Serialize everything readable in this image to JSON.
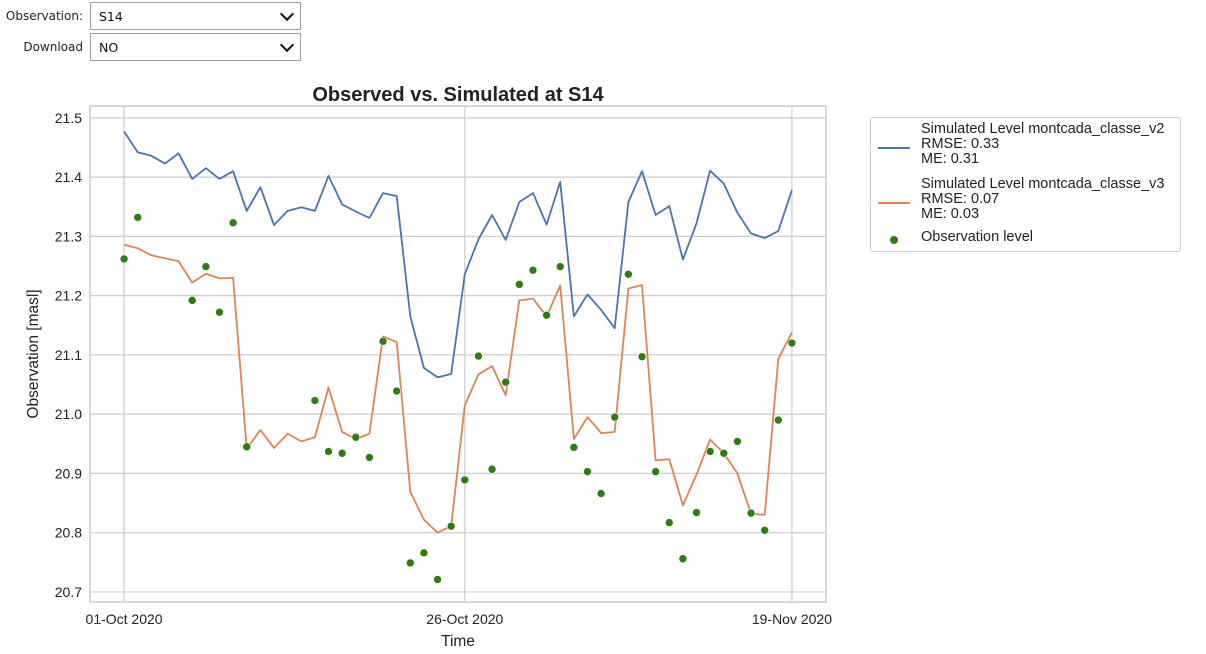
{
  "controls": {
    "observation": {
      "label": "Observation:",
      "value": "S14"
    },
    "download": {
      "label": "Download",
      "value": "NO"
    }
  },
  "chart_data": {
    "type": "line",
    "title": "Observed vs. Simulated at S14",
    "xlabel": "Time",
    "ylabel": "Observation [masl]",
    "ylim": [
      20.683,
      21.52
    ],
    "xlim": [
      "2020-09-28T12:00",
      "2020-11-21T12:00"
    ],
    "grid": true,
    "legend_placement": "outside-top-right",
    "x_ticks": [
      {
        "date": "2020-10-01",
        "label": "01-Oct 2020"
      },
      {
        "date": "2020-10-26",
        "label": "26-Oct 2020"
      },
      {
        "date": "2020-11-19",
        "label": "19-Nov 2020"
      }
    ],
    "y_ticks": [
      "20.7",
      "20.8",
      "20.9",
      "21.0",
      "21.1",
      "21.2",
      "21.3",
      "21.4",
      "21.5"
    ],
    "start_date": "2020-10-01",
    "series": [
      {
        "name": "Simulated Level montcada_classe_v2",
        "rmse": "RMSE: 0.33",
        "me": "ME: 0.31",
        "color": "#4c72b0",
        "kind": "line",
        "values": [
          21.477,
          21.442,
          21.436,
          21.423,
          21.44,
          21.397,
          21.415,
          21.397,
          21.41,
          21.343,
          21.383,
          21.319,
          21.343,
          21.349,
          21.343,
          21.402,
          21.354,
          21.342,
          21.331,
          21.373,
          21.368,
          21.165,
          21.078,
          21.062,
          21.068,
          21.236,
          21.295,
          21.336,
          21.294,
          21.358,
          21.373,
          21.32,
          21.392,
          21.165,
          21.202,
          21.176,
          21.145,
          21.358,
          21.41,
          21.336,
          21.351,
          21.261,
          21.322,
          21.411,
          21.389,
          21.34,
          21.305,
          21.297,
          21.309,
          21.378
        ]
      },
      {
        "name": "Simulated Level montcada_classe_v3",
        "rmse": "RMSE: 0.07",
        "me": "ME: 0.03",
        "color": "#dd8452",
        "kind": "line",
        "values": [
          21.286,
          21.28,
          21.268,
          21.263,
          21.258,
          21.222,
          21.237,
          21.229,
          21.23,
          20.942,
          20.973,
          20.943,
          20.967,
          20.954,
          20.961,
          21.045,
          20.97,
          20.958,
          20.967,
          21.131,
          21.122,
          20.869,
          20.822,
          20.8,
          20.811,
          21.015,
          21.067,
          21.081,
          21.032,
          21.192,
          21.195,
          21.165,
          21.217,
          20.958,
          20.995,
          20.968,
          20.97,
          21.212,
          21.218,
          20.922,
          20.924,
          20.846,
          20.898,
          20.957,
          20.934,
          20.9,
          20.832,
          20.83,
          21.093,
          21.138
        ]
      },
      {
        "name": "Observation level",
        "color": "#2e7d12",
        "kind": "scatter",
        "points": [
          [
            "2020-10-01",
            21.262
          ],
          [
            "2020-10-02",
            21.332
          ],
          [
            "2020-10-06",
            21.192
          ],
          [
            "2020-10-07",
            21.249
          ],
          [
            "2020-10-08",
            21.172
          ],
          [
            "2020-10-09",
            21.323
          ],
          [
            "2020-10-10",
            20.945
          ],
          [
            "2020-10-15",
            21.023
          ],
          [
            "2020-10-16",
            20.937
          ],
          [
            "2020-10-17",
            20.934
          ],
          [
            "2020-10-18",
            20.961
          ],
          [
            "2020-10-19",
            20.927
          ],
          [
            "2020-10-20",
            21.123
          ],
          [
            "2020-10-21",
            21.039
          ],
          [
            "2020-10-22",
            20.749
          ],
          [
            "2020-10-23",
            20.766
          ],
          [
            "2020-10-24",
            20.721
          ],
          [
            "2020-10-25",
            20.811
          ],
          [
            "2020-10-26",
            20.889
          ],
          [
            "2020-10-27",
            21.098
          ],
          [
            "2020-10-28",
            20.907
          ],
          [
            "2020-10-29",
            21.054
          ],
          [
            "2020-10-30",
            21.219
          ],
          [
            "2020-10-31",
            21.243
          ],
          [
            "2020-11-01",
            21.167
          ],
          [
            "2020-11-02",
            21.249
          ],
          [
            "2020-11-03",
            20.944
          ],
          [
            "2020-11-04",
            20.903
          ],
          [
            "2020-11-05",
            20.866
          ],
          [
            "2020-11-06",
            20.995
          ],
          [
            "2020-11-07",
            21.236
          ],
          [
            "2020-11-08",
            21.097
          ],
          [
            "2020-11-09",
            20.903
          ],
          [
            "2020-11-10",
            20.817
          ],
          [
            "2020-11-11",
            20.756
          ],
          [
            "2020-11-12",
            20.834
          ],
          [
            "2020-11-13",
            20.937
          ],
          [
            "2020-11-14",
            20.934
          ],
          [
            "2020-11-15",
            20.954
          ],
          [
            "2020-11-16",
            20.833
          ],
          [
            "2020-11-17",
            20.804
          ],
          [
            "2020-11-18",
            20.99
          ],
          [
            "2020-11-19",
            21.12
          ]
        ]
      }
    ]
  }
}
